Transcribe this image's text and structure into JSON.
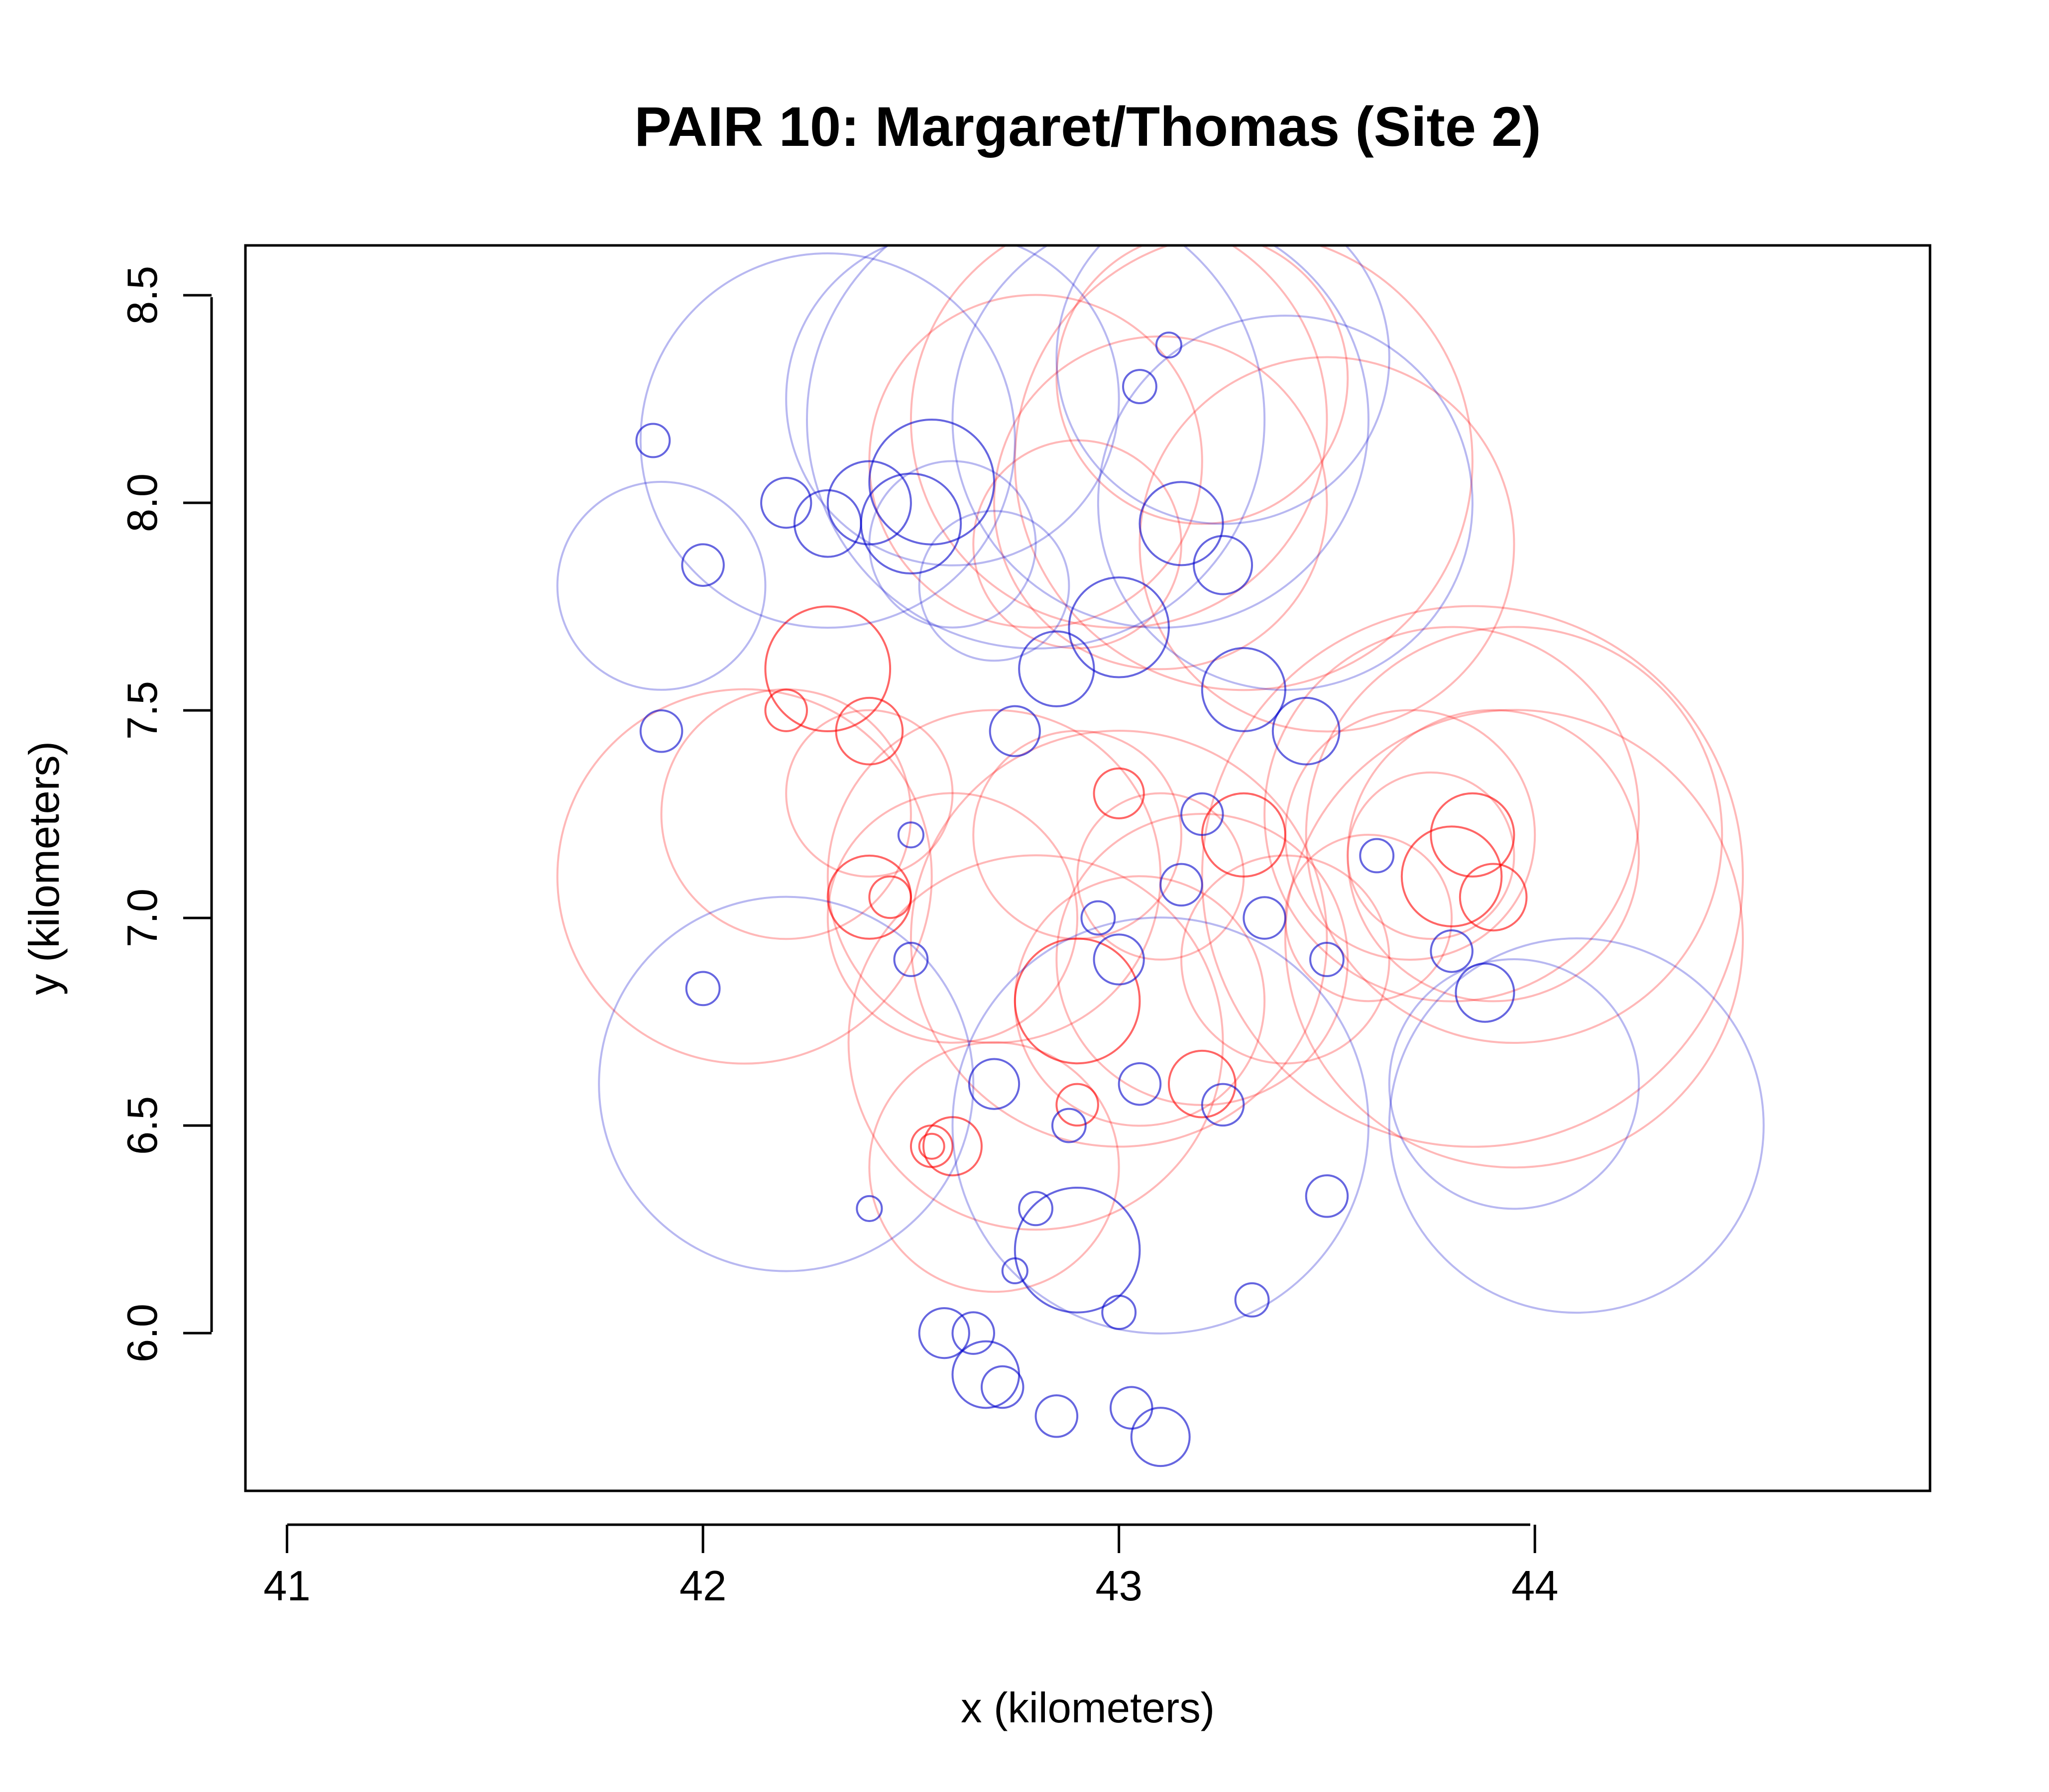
{
  "chart_data": {
    "type": "scatter",
    "title": "PAIR 10: Margaret/Thomas (Site 2)",
    "xlabel": "x (kilometers)",
    "ylabel": "y (kilometers)",
    "xlim": [
      40.9,
      44.95
    ],
    "ylim": [
      5.62,
      8.62
    ],
    "xticks": [
      41,
      42,
      43,
      44
    ],
    "xtick_labels": [
      "41",
      "42",
      "43",
      "44"
    ],
    "yticks": [
      6.0,
      6.5,
      7.0,
      7.5,
      8.0,
      8.5
    ],
    "ytick_labels": [
      "6.0",
      "6.5",
      "7.0",
      "7.5",
      "8.0",
      "8.5"
    ],
    "grid": false,
    "legend": "none",
    "series": [
      {
        "color": "#ff0000",
        "marker": "open circle",
        "points": [
          {
            "x": 43.75,
            "y": 7.15,
            "r": 0.2
          },
          {
            "x": 43.9,
            "y": 7.15,
            "r": 0.35
          },
          {
            "x": 43.95,
            "y": 7.2,
            "r": 0.5
          },
          {
            "x": 43.85,
            "y": 7.1,
            "r": 0.65
          },
          {
            "x": 43.95,
            "y": 6.95,
            "r": 0.55
          },
          {
            "x": 43.8,
            "y": 7.25,
            "r": 0.45
          },
          {
            "x": 43.7,
            "y": 7.2,
            "r": 0.3
          },
          {
            "x": 43.8,
            "y": 7.1,
            "r": 0.12
          },
          {
            "x": 43.85,
            "y": 7.2,
            "r": 0.1
          },
          {
            "x": 43.9,
            "y": 7.05,
            "r": 0.08
          },
          {
            "x": 42.55,
            "y": 6.45,
            "r": 0.05
          },
          {
            "x": 42.55,
            "y": 6.45,
            "r": 0.03
          },
          {
            "x": 42.6,
            "y": 6.45,
            "r": 0.07
          },
          {
            "x": 42.45,
            "y": 7.05,
            "r": 0.05
          },
          {
            "x": 42.4,
            "y": 7.05,
            "r": 0.1
          },
          {
            "x": 42.7,
            "y": 7.1,
            "r": 0.4
          },
          {
            "x": 42.6,
            "y": 7.0,
            "r": 0.3
          },
          {
            "x": 42.9,
            "y": 7.2,
            "r": 0.25
          },
          {
            "x": 43.1,
            "y": 7.1,
            "r": 0.2
          },
          {
            "x": 43.0,
            "y": 6.95,
            "r": 0.5
          },
          {
            "x": 43.2,
            "y": 6.9,
            "r": 0.35
          },
          {
            "x": 42.9,
            "y": 6.8,
            "r": 0.15
          },
          {
            "x": 42.8,
            "y": 6.7,
            "r": 0.45
          },
          {
            "x": 43.05,
            "y": 6.8,
            "r": 0.3
          },
          {
            "x": 42.4,
            "y": 7.3,
            "r": 0.2
          },
          {
            "x": 42.2,
            "y": 7.25,
            "r": 0.3
          },
          {
            "x": 42.1,
            "y": 7.1,
            "r": 0.45
          },
          {
            "x": 42.3,
            "y": 7.6,
            "r": 0.15
          },
          {
            "x": 42.8,
            "y": 8.1,
            "r": 0.4
          },
          {
            "x": 43.0,
            "y": 8.2,
            "r": 0.5
          },
          {
            "x": 43.1,
            "y": 8.0,
            "r": 0.4
          },
          {
            "x": 43.3,
            "y": 8.1,
            "r": 0.55
          },
          {
            "x": 43.5,
            "y": 7.9,
            "r": 0.45
          },
          {
            "x": 43.2,
            "y": 8.3,
            "r": 0.35
          },
          {
            "x": 42.9,
            "y": 7.9,
            "r": 0.25
          },
          {
            "x": 42.7,
            "y": 6.4,
            "r": 0.3
          },
          {
            "x": 43.4,
            "y": 6.9,
            "r": 0.25
          },
          {
            "x": 43.6,
            "y": 7.0,
            "r": 0.2
          },
          {
            "x": 42.4,
            "y": 7.45,
            "r": 0.08
          },
          {
            "x": 42.2,
            "y": 7.5,
            "r": 0.05
          },
          {
            "x": 43.0,
            "y": 7.3,
            "r": 0.06
          },
          {
            "x": 43.3,
            "y": 7.2,
            "r": 0.1
          },
          {
            "x": 43.2,
            "y": 6.6,
            "r": 0.08
          },
          {
            "x": 42.9,
            "y": 6.55,
            "r": 0.05
          }
        ]
      },
      {
        "color": "#0000cc",
        "marker": "open circle",
        "points": [
          {
            "x": 42.55,
            "y": 8.05,
            "r": 0.15
          },
          {
            "x": 42.6,
            "y": 7.9,
            "r": 0.2
          },
          {
            "x": 42.5,
            "y": 7.95,
            "r": 0.12
          },
          {
            "x": 42.7,
            "y": 7.8,
            "r": 0.18
          },
          {
            "x": 42.4,
            "y": 8.0,
            "r": 0.1
          },
          {
            "x": 42.3,
            "y": 7.95,
            "r": 0.08
          },
          {
            "x": 42.2,
            "y": 8.0,
            "r": 0.06
          },
          {
            "x": 42.0,
            "y": 7.85,
            "r": 0.05
          },
          {
            "x": 43.15,
            "y": 7.95,
            "r": 0.1
          },
          {
            "x": 43.25,
            "y": 7.85,
            "r": 0.07
          },
          {
            "x": 43.0,
            "y": 7.7,
            "r": 0.12
          },
          {
            "x": 43.3,
            "y": 7.55,
            "r": 0.1
          },
          {
            "x": 43.45,
            "y": 7.45,
            "r": 0.08
          },
          {
            "x": 42.85,
            "y": 7.6,
            "r": 0.09
          },
          {
            "x": 42.75,
            "y": 7.45,
            "r": 0.06
          },
          {
            "x": 43.05,
            "y": 8.28,
            "r": 0.04
          },
          {
            "x": 43.12,
            "y": 8.38,
            "r": 0.03
          },
          {
            "x": 43.2,
            "y": 7.25,
            "r": 0.05
          },
          {
            "x": 43.15,
            "y": 7.08,
            "r": 0.05
          },
          {
            "x": 43.35,
            "y": 7.0,
            "r": 0.05
          },
          {
            "x": 43.5,
            "y": 6.9,
            "r": 0.04
          },
          {
            "x": 43.8,
            "y": 6.92,
            "r": 0.05
          },
          {
            "x": 43.88,
            "y": 6.82,
            "r": 0.07
          },
          {
            "x": 43.62,
            "y": 7.15,
            "r": 0.04
          },
          {
            "x": 43.0,
            "y": 6.9,
            "r": 0.06
          },
          {
            "x": 43.05,
            "y": 6.6,
            "r": 0.05
          },
          {
            "x": 43.25,
            "y": 6.55,
            "r": 0.05
          },
          {
            "x": 42.7,
            "y": 6.6,
            "r": 0.06
          },
          {
            "x": 42.88,
            "y": 6.5,
            "r": 0.04
          },
          {
            "x": 42.58,
            "y": 6.0,
            "r": 0.06
          },
          {
            "x": 42.65,
            "y": 6.0,
            "r": 0.05
          },
          {
            "x": 42.72,
            "y": 5.87,
            "r": 0.05
          },
          {
            "x": 43.03,
            "y": 5.82,
            "r": 0.05
          },
          {
            "x": 43.1,
            "y": 5.75,
            "r": 0.07
          },
          {
            "x": 42.68,
            "y": 5.9,
            "r": 0.08
          },
          {
            "x": 42.85,
            "y": 5.8,
            "r": 0.05
          },
          {
            "x": 43.1,
            "y": 6.5,
            "r": 0.5
          },
          {
            "x": 42.9,
            "y": 6.2,
            "r": 0.15
          },
          {
            "x": 44.1,
            "y": 6.5,
            "r": 0.45
          },
          {
            "x": 43.95,
            "y": 6.6,
            "r": 0.3
          },
          {
            "x": 42.2,
            "y": 6.6,
            "r": 0.45
          },
          {
            "x": 41.9,
            "y": 7.8,
            "r": 0.25
          },
          {
            "x": 42.3,
            "y": 8.15,
            "r": 0.45
          },
          {
            "x": 42.8,
            "y": 8.2,
            "r": 0.55
          },
          {
            "x": 43.1,
            "y": 8.2,
            "r": 0.5
          },
          {
            "x": 43.4,
            "y": 8.0,
            "r": 0.45
          },
          {
            "x": 42.6,
            "y": 8.25,
            "r": 0.4
          },
          {
            "x": 43.25,
            "y": 8.35,
            "r": 0.4
          },
          {
            "x": 42.0,
            "y": 6.83,
            "r": 0.04
          },
          {
            "x": 41.9,
            "y": 7.45,
            "r": 0.05
          },
          {
            "x": 41.88,
            "y": 8.15,
            "r": 0.04
          },
          {
            "x": 43.32,
            "y": 6.08,
            "r": 0.04
          },
          {
            "x": 43.5,
            "y": 6.33,
            "r": 0.05
          },
          {
            "x": 42.5,
            "y": 6.9,
            "r": 0.04
          },
          {
            "x": 42.4,
            "y": 6.3,
            "r": 0.03
          },
          {
            "x": 42.75,
            "y": 6.15,
            "r": 0.03
          },
          {
            "x": 43.0,
            "y": 6.05,
            "r": 0.04
          },
          {
            "x": 42.8,
            "y": 6.3,
            "r": 0.04
          },
          {
            "x": 42.5,
            "y": 7.2,
            "r": 0.03
          },
          {
            "x": 42.95,
            "y": 7.0,
            "r": 0.04
          }
        ]
      }
    ]
  }
}
